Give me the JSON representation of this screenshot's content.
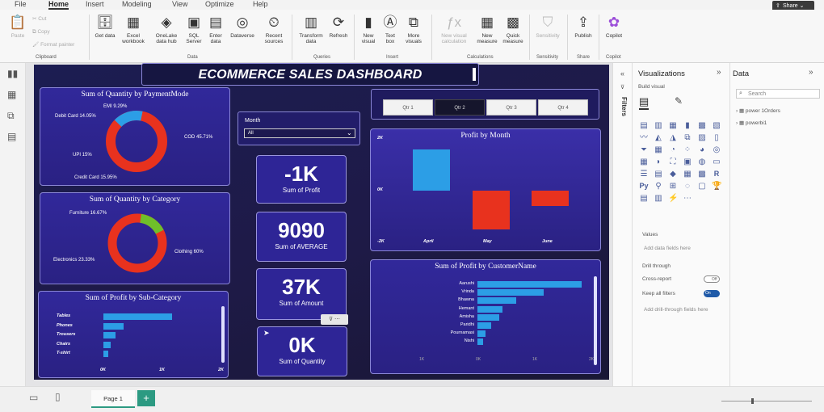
{
  "menu": {
    "items": [
      "File",
      "Home",
      "Insert",
      "Modeling",
      "View",
      "Optimize",
      "Help"
    ],
    "share": "Share"
  },
  "ribbon": {
    "clipboard": {
      "paste": "Paste",
      "cut": "Cut",
      "copy": "Copy",
      "format_painter": "Format painter",
      "label": "Clipboard"
    },
    "data": {
      "get_data": "Get data",
      "excel": "Excel workbook",
      "onelake": "OneLake data hub",
      "sql": "SQL Server",
      "enter": "Enter data",
      "dataverse": "Dataverse",
      "recent": "Recent sources",
      "label": "Data"
    },
    "queries": {
      "transform": "Transform data",
      "refresh": "Refresh",
      "label": "Queries"
    },
    "insert": {
      "new_visual": "New visual",
      "text_box": "Text box",
      "more_visuals": "More visuals",
      "label": "Insert"
    },
    "calculations": {
      "new_visual_calc": "New visual calculation",
      "new_measure": "New measure",
      "quick_measure": "Quick measure",
      "label": "Calculations"
    },
    "sensitivity": {
      "btn": "Sensitivity",
      "label": "Sensitivity"
    },
    "share": {
      "publish": "Publish",
      "label": "Share"
    },
    "copilot": {
      "btn": "Copilot",
      "label": "Copilot"
    }
  },
  "dashboard": {
    "title": "ECOMMERCE SALES DASHBOARD",
    "payment": {
      "title": "Sum of Quantity by PaymentMode",
      "labels": {
        "emi": "EMI 9.29%",
        "debit": "Debit Card 14.05%",
        "cod": "COD 45.71%",
        "upi": "UPI 15%",
        "credit": "Credit Card 15.95%"
      }
    },
    "category": {
      "title": "Sum of Quantity by Category",
      "labels": {
        "furniture": "Furniture 16.67%",
        "clothing": "Clothing 60%",
        "electronics": "Electronics 23.33%"
      }
    },
    "subcat": {
      "title": "Sum of Profit by Sub-Category",
      "x_ticks": [
        "0K",
        "1K",
        "2K"
      ]
    },
    "month_slicer": {
      "label": "Month",
      "value": "All"
    },
    "qtr": [
      "Qtr 1",
      "Qtr 2",
      "Qtr 3",
      "Qtr 4"
    ],
    "kpis": [
      {
        "value": "-1K",
        "label": "Sum of Profit"
      },
      {
        "value": "9090",
        "label": "Sum of AVERAGE"
      },
      {
        "value": "37K",
        "label": "Sum of Amount"
      },
      {
        "value": "0K",
        "label": "Sum of Quantity"
      }
    ],
    "profit_month": {
      "title": "Profit by Month",
      "y_ticks": [
        "2K",
        "0K",
        "-2K"
      ]
    },
    "customer": {
      "title": "Sum of Profit by CustomerName",
      "x_ticks": [
        "1K",
        "0K",
        "1K",
        "2K"
      ]
    }
  },
  "chart_data": [
    {
      "type": "pie",
      "title": "Sum of Quantity by PaymentMode",
      "categories": [
        "COD",
        "Credit Card",
        "UPI",
        "Debit Card",
        "EMI"
      ],
      "values": [
        45.71,
        15.95,
        15,
        14.05,
        9.29
      ]
    },
    {
      "type": "pie",
      "title": "Sum of Quantity by Category",
      "categories": [
        "Clothing",
        "Electronics",
        "Furniture"
      ],
      "values": [
        60,
        23.33,
        16.67
      ]
    },
    {
      "type": "bar",
      "title": "Sum of Profit by Sub-Category",
      "categories": [
        "Tables",
        "Phones",
        "Trousers",
        "Chairs",
        "T-shirt"
      ],
      "values": [
        1.7,
        0.5,
        0.3,
        0.18,
        0.12
      ],
      "xlabel": "",
      "ylabel": ""
    },
    {
      "type": "bar",
      "title": "Profit by Month",
      "categories": [
        "April",
        "May",
        "June"
      ],
      "values": [
        1.6,
        -1.5,
        -0.6
      ],
      "ylim": [
        -2.5,
        2.5
      ]
    },
    {
      "type": "bar",
      "title": "Sum of Profit by CustomerName",
      "categories": [
        "Aarushi",
        "Vrinda",
        "Bhawna",
        "Hemant",
        "Amisha",
        "Paridhi",
        "Pournamasi",
        "Nishi"
      ],
      "values": [
        1.9,
        1.2,
        0.7,
        0.45,
        0.4,
        0.25,
        0.15,
        0.1
      ]
    }
  ],
  "panels": {
    "filters": "Filters",
    "viz": {
      "title": "Visualizations",
      "build": "Build visual",
      "values": "Values",
      "add_fields": "Add data fields here",
      "drill": "Drill through",
      "cross": "Cross-report",
      "cross_state": "Off",
      "keep": "Keep all filters",
      "keep_state": "On",
      "add_drill": "Add drill-through fields here"
    },
    "data": {
      "title": "Data",
      "search": "Search",
      "tables": [
        "power 1Orders",
        "powerbi1"
      ]
    }
  },
  "bottom": {
    "page": "Page 1"
  },
  "colors": {
    "blue": "#2c9ee6",
    "red": "#e8321e",
    "green": "#6fbf2a",
    "card": "#2e2596"
  }
}
